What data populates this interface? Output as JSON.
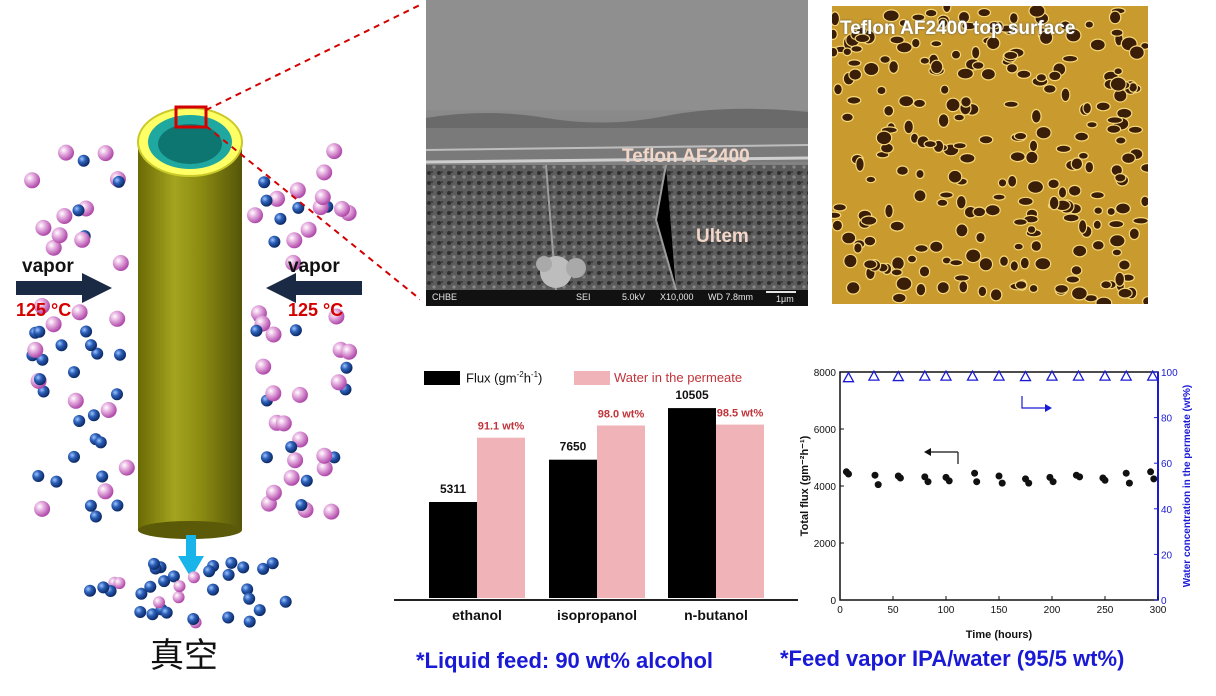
{
  "left_diagram": {
    "vapor_left": "vapor",
    "vapor_right": "vapor",
    "temp_left": "125 °C",
    "temp_right": "125 °C",
    "vacuum_label": "真空",
    "colors": {
      "tube": "#8a8a10",
      "tube_top": "#ffff66",
      "inner_ring": "#1fa8a0",
      "arrow": "#1a2a45",
      "vacuum_arrow": "#19b4ea",
      "temp_text": "#d40000",
      "zoom_box": "#d40000"
    },
    "icons": [
      "blue-sphere-icon",
      "pink-sphere-icon"
    ]
  },
  "sem_image": {
    "layer_top": "Teflon AF2400",
    "layer_bottom": "Ultem",
    "footer": {
      "lab": "CHBE",
      "detector": "SEI",
      "voltage": "5.0kV",
      "magnification": "X10,000",
      "wd": "WD 7.8mm",
      "scale": "1μm"
    }
  },
  "afm_image": {
    "title": "Teflon AF2400 top surface"
  },
  "bar_chart": {
    "chart_data": {
      "type": "bar",
      "categories": [
        "ethanol",
        "isopropanol",
        "n-butanol"
      ],
      "series": [
        {
          "name": "Flux (gm⁻²h⁻¹)",
          "values": [
            5311,
            7650,
            10505
          ],
          "labels": [
            "5311",
            "7650",
            "10505"
          ],
          "color": "#000000"
        },
        {
          "name": "Water in the permeate",
          "values": [
            91.1,
            98.0,
            98.5
          ],
          "labels": [
            "91.1 wt%",
            "98.0 wt%",
            "98.5 wt%"
          ],
          "color": "#f0b4b8"
        }
      ],
      "legend": {
        "flux": "Flux (gm",
        "flux_sup1": "-2",
        "flux_mid": "h",
        "flux_sup2": "-1",
        "flux_end": ")",
        "water": "Water in the permeate"
      },
      "legend_placement": "top"
    }
  },
  "line_chart": {
    "chart_data": {
      "type": "scatter",
      "xlabel": "Time (hours)",
      "ylabel_left": "Total flux (gm⁻²h⁻¹)",
      "ylabel_right": "Water concentration in the permeate (wt%)",
      "xlim": [
        0,
        300
      ],
      "ylim_left": [
        0,
        8000
      ],
      "ylim_right": [
        0,
        100
      ],
      "x_ticks": [
        "0",
        "50",
        "100",
        "150",
        "200",
        "250",
        "300"
      ],
      "y_ticks_left": [
        "0",
        "2000",
        "4000",
        "6000",
        "8000"
      ],
      "y_ticks_right": [
        "0",
        "20",
        "40",
        "60",
        "80",
        "100"
      ],
      "series": [
        {
          "name": "Total flux",
          "axis": "left",
          "marker": "dot",
          "color": "#111111",
          "points": [
            [
              6,
              4500
            ],
            [
              8,
              4420
            ],
            [
              33,
              4380
            ],
            [
              36,
              4050
            ],
            [
              55,
              4350
            ],
            [
              57,
              4280
            ],
            [
              80,
              4320
            ],
            [
              83,
              4150
            ],
            [
              100,
              4300
            ],
            [
              103,
              4180
            ],
            [
              127,
              4450
            ],
            [
              129,
              4150
            ],
            [
              150,
              4350
            ],
            [
              153,
              4100
            ],
            [
              175,
              4250
            ],
            [
              178,
              4100
            ],
            [
              198,
              4300
            ],
            [
              201,
              4150
            ],
            [
              223,
              4380
            ],
            [
              226,
              4320
            ],
            [
              248,
              4280
            ],
            [
              250,
              4200
            ],
            [
              270,
              4450
            ],
            [
              273,
              4100
            ],
            [
              293,
              4500
            ],
            [
              296,
              4250
            ]
          ]
        },
        {
          "name": "Water concentration",
          "axis": "right",
          "marker": "triangle",
          "color": "#1a1ad6",
          "points": [
            [
              8,
              97.5
            ],
            [
              32,
              98.2
            ],
            [
              55,
              98
            ],
            [
              80,
              98.2
            ],
            [
              100,
              98.2
            ],
            [
              125,
              98.2
            ],
            [
              150,
              98.2
            ],
            [
              175,
              98
            ],
            [
              200,
              98.2
            ],
            [
              225,
              98.2
            ],
            [
              250,
              98.2
            ],
            [
              270,
              98.2
            ],
            [
              295,
              98.2
            ]
          ]
        }
      ]
    }
  },
  "captions": {
    "left": "*Liquid feed: 90 wt% alcohol",
    "right": "*Feed vapor IPA/water (95/5 wt%)"
  }
}
